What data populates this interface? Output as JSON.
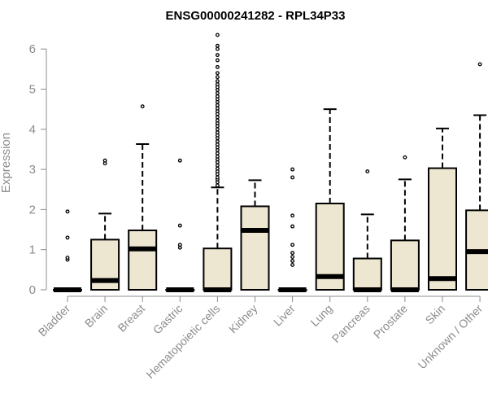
{
  "chart_data": {
    "type": "boxplot",
    "title": "ENSG00000241282 - RPL34P33",
    "xlabel": "",
    "ylabel": "Expression",
    "ylim": [
      0,
      6.4
    ],
    "yticks": [
      "0",
      "1",
      "2",
      "3",
      "4",
      "5",
      "6"
    ],
    "box_fill": "#ede6d0",
    "categories": [
      "Bladder",
      "Brain",
      "Breast",
      "Gastric",
      "Hematopoietic cells",
      "Kidney",
      "Liver",
      "Lung",
      "Pancreas",
      "Prostate",
      "Skin",
      "Unknown / Other"
    ],
    "boxes": [
      {
        "name": "Bladder",
        "whisker_low": 0,
        "q1": 0,
        "median": 0,
        "q3": 0,
        "whisker_high": 0,
        "outliers": [
          0.75,
          0.8,
          1.3,
          1.95
        ]
      },
      {
        "name": "Brain",
        "whisker_low": 0,
        "q1": 0,
        "median": 0.23,
        "q3": 1.25,
        "whisker_high": 1.9,
        "outliers": [
          3.15,
          3.22
        ]
      },
      {
        "name": "Breast",
        "whisker_low": 0,
        "q1": 0,
        "median": 1.02,
        "q3": 1.48,
        "whisker_high": 3.63,
        "outliers": [
          4.57
        ]
      },
      {
        "name": "Gastric",
        "whisker_low": 0,
        "q1": 0,
        "median": 0,
        "q3": 0,
        "whisker_high": 0,
        "outliers": [
          1.05,
          1.12,
          1.6,
          3.22
        ]
      },
      {
        "name": "Hematopoietic cells",
        "whisker_low": 0,
        "q1": 0,
        "median": 0,
        "q3": 1.03,
        "whisker_high": 2.55,
        "outliers": [
          2.6,
          2.68,
          2.75,
          2.8,
          2.88,
          2.95,
          3.02,
          3.1,
          3.18,
          3.25,
          3.32,
          3.4,
          3.48,
          3.55,
          3.62,
          3.7,
          3.78,
          3.85,
          3.92,
          4.0,
          4.08,
          4.15,
          4.22,
          4.3,
          4.38,
          4.45,
          4.52,
          4.6,
          4.68,
          4.75,
          4.82,
          4.9,
          4.98,
          5.05,
          5.12,
          5.2,
          5.3,
          5.4,
          5.55,
          5.72,
          5.85,
          6.0,
          6.08,
          6.35
        ]
      },
      {
        "name": "Kidney",
        "whisker_low": 0,
        "q1": 0,
        "median": 1.48,
        "q3": 2.08,
        "whisker_high": 2.73,
        "outliers": []
      },
      {
        "name": "Liver",
        "whisker_low": 0,
        "q1": 0,
        "median": 0,
        "q3": 0,
        "whisker_high": 0,
        "outliers": [
          0.62,
          0.72,
          0.82,
          0.92,
          1.12,
          1.58,
          1.85,
          2.8,
          3.0
        ]
      },
      {
        "name": "Lung",
        "whisker_low": 0,
        "q1": 0,
        "median": 0.33,
        "q3": 2.15,
        "whisker_high": 4.5,
        "outliers": []
      },
      {
        "name": "Pancreas",
        "whisker_low": 0,
        "q1": 0,
        "median": 0,
        "q3": 0.78,
        "whisker_high": 1.88,
        "outliers": [
          2.95
        ]
      },
      {
        "name": "Prostate",
        "whisker_low": 0,
        "q1": 0,
        "median": 0,
        "q3": 1.23,
        "whisker_high": 2.75,
        "outliers": [
          3.3
        ]
      },
      {
        "name": "Skin",
        "whisker_low": 0,
        "q1": 0,
        "median": 0.28,
        "q3": 3.03,
        "whisker_high": 4.02,
        "outliers": []
      },
      {
        "name": "Unknown / Other",
        "whisker_low": 0,
        "q1": 0,
        "median": 0.95,
        "q3": 1.98,
        "whisker_high": 4.35,
        "outliers": [
          5.62
        ]
      }
    ]
  }
}
